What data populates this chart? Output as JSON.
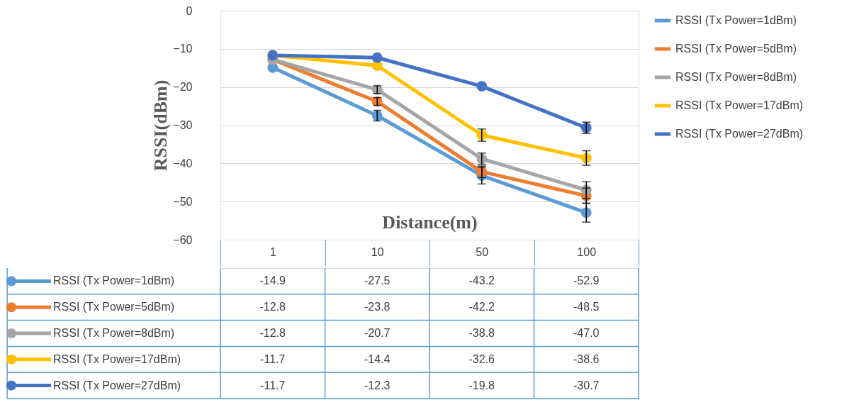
{
  "chart_data": {
    "type": "line",
    "xlabel": "Distance(m)",
    "ylabel": "RSSI(dBm)",
    "categories": [
      "1",
      "10",
      "50",
      "100"
    ],
    "series": [
      {
        "name": "RSSI (Tx Power=1dBm)",
        "color": "#5b9bd5",
        "values": [
          -14.9,
          -27.5,
          -43.2,
          -52.9
        ],
        "value_labels": [
          "-14.9",
          "-27.5",
          "-43.2",
          "-52.9"
        ],
        "errors": [
          null,
          1.4,
          2.2,
          2.5
        ]
      },
      {
        "name": "RSSI (Tx Power=5dBm)",
        "color": "#ed7d31",
        "values": [
          -12.8,
          -23.8,
          -42.2,
          -48.5
        ],
        "value_labels": [
          "-12.8",
          "-23.8",
          "-42.2",
          "-48.5"
        ],
        "errors": [
          null,
          1.0,
          1.5,
          2.0
        ]
      },
      {
        "name": "RSSI (Tx Power=8dBm)",
        "color": "#a5a5a5",
        "values": [
          -12.8,
          -20.7,
          -38.8,
          -47.0
        ],
        "value_labels": [
          "-12.8",
          "-20.7",
          "-38.8",
          "-47.0"
        ],
        "errors": [
          null,
          1.0,
          1.5,
          2.2
        ]
      },
      {
        "name": "RSSI (Tx Power=17dBm)",
        "color": "#ffc000",
        "values": [
          -11.7,
          -14.4,
          -32.6,
          -38.6
        ],
        "value_labels": [
          "-11.7",
          "-14.4",
          "-32.6",
          "-38.6"
        ],
        "errors": [
          null,
          null,
          1.6,
          1.9
        ]
      },
      {
        "name": "RSSI (Tx Power=27dBm)",
        "color": "#4472c4",
        "values": [
          -11.7,
          -12.3,
          -19.8,
          -30.7
        ],
        "value_labels": [
          "-11.7",
          "-12.3",
          "-19.8",
          "-30.7"
        ],
        "errors": [
          null,
          null,
          null,
          1.5
        ]
      }
    ],
    "ylim": [
      -60,
      0
    ],
    "yticks": [
      0,
      -10,
      -20,
      -30,
      -40,
      -50,
      -60
    ],
    "grid": "y",
    "legend": "right",
    "marker": "circle",
    "line_style": "solid"
  }
}
